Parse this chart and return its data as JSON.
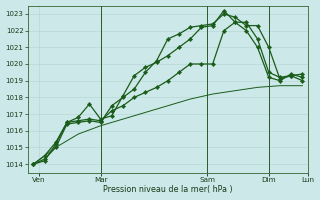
{
  "xlabel": "Pression niveau de la mer( hPa )",
  "ylim": [
    1013.5,
    1023.5
  ],
  "yticks": [
    1014,
    1015,
    1016,
    1017,
    1018,
    1019,
    1020,
    1021,
    1022,
    1023
  ],
  "bg_color": "#cce8e8",
  "grid_minor_color": "#b8d8d8",
  "grid_major_color": "#99c4c4",
  "line_color": "#1a5c1a",
  "vline_color": "#2a5a2a",
  "series1_x": [
    0,
    1,
    2,
    3,
    4,
    5,
    6,
    7,
    8,
    9,
    10,
    11,
    12,
    13,
    14,
    15,
    16,
    17,
    18,
    19,
    20,
    21,
    22,
    23,
    24
  ],
  "series1_y": [
    1014.0,
    1014.5,
    1015.3,
    1016.5,
    1016.8,
    1017.6,
    1016.7,
    1016.9,
    1018.1,
    1019.3,
    1019.8,
    1020.1,
    1020.5,
    1021.0,
    1021.5,
    1022.2,
    1022.3,
    1023.2,
    1022.5,
    1022.0,
    1021.0,
    1019.2,
    1019.0,
    1019.4,
    1019.2
  ],
  "series2_x": [
    0,
    1,
    2,
    3,
    4,
    5,
    6,
    7,
    8,
    9,
    10,
    11,
    12,
    13,
    14,
    15,
    16,
    17,
    18,
    19,
    20,
    21,
    22,
    23,
    24
  ],
  "series2_y": [
    1014.0,
    1014.3,
    1015.0,
    1016.4,
    1016.5,
    1016.6,
    1016.5,
    1017.5,
    1018.0,
    1018.5,
    1019.5,
    1020.2,
    1021.5,
    1021.8,
    1022.2,
    1022.3,
    1022.4,
    1023.0,
    1022.8,
    1022.3,
    1022.3,
    1021.0,
    1019.1,
    1019.3,
    1019.4
  ],
  "series3_x": [
    0,
    1,
    2,
    3,
    4,
    5,
    6,
    7,
    8,
    9,
    10,
    11,
    12,
    13,
    14,
    15,
    16,
    17,
    18,
    19,
    20,
    21,
    22,
    23,
    24
  ],
  "series3_y": [
    1014.0,
    1014.2,
    1015.2,
    1016.5,
    1016.6,
    1016.7,
    1016.6,
    1017.2,
    1017.5,
    1018.0,
    1018.3,
    1018.6,
    1019.0,
    1019.5,
    1020.0,
    1020.0,
    1020.0,
    1022.0,
    1022.5,
    1022.5,
    1021.5,
    1019.5,
    1019.2,
    1019.3,
    1019.0
  ],
  "series4_x": [
    0,
    2,
    4,
    6,
    8,
    10,
    12,
    14,
    16,
    18,
    20,
    22,
    24
  ],
  "series4_y": [
    1014.0,
    1015.0,
    1015.8,
    1016.3,
    1016.7,
    1017.1,
    1017.5,
    1017.9,
    1018.2,
    1018.4,
    1018.6,
    1018.7,
    1018.7
  ],
  "xlim": [
    -0.5,
    24.5
  ],
  "vlines_x": [
    6.0,
    15.5,
    21.0
  ],
  "xtick_positions": [
    0.5,
    6.0,
    15.5,
    21.0,
    24.5
  ],
  "xtick_labels": [
    "Ven",
    "Mar",
    "Sam",
    "Dim",
    "Lun"
  ]
}
